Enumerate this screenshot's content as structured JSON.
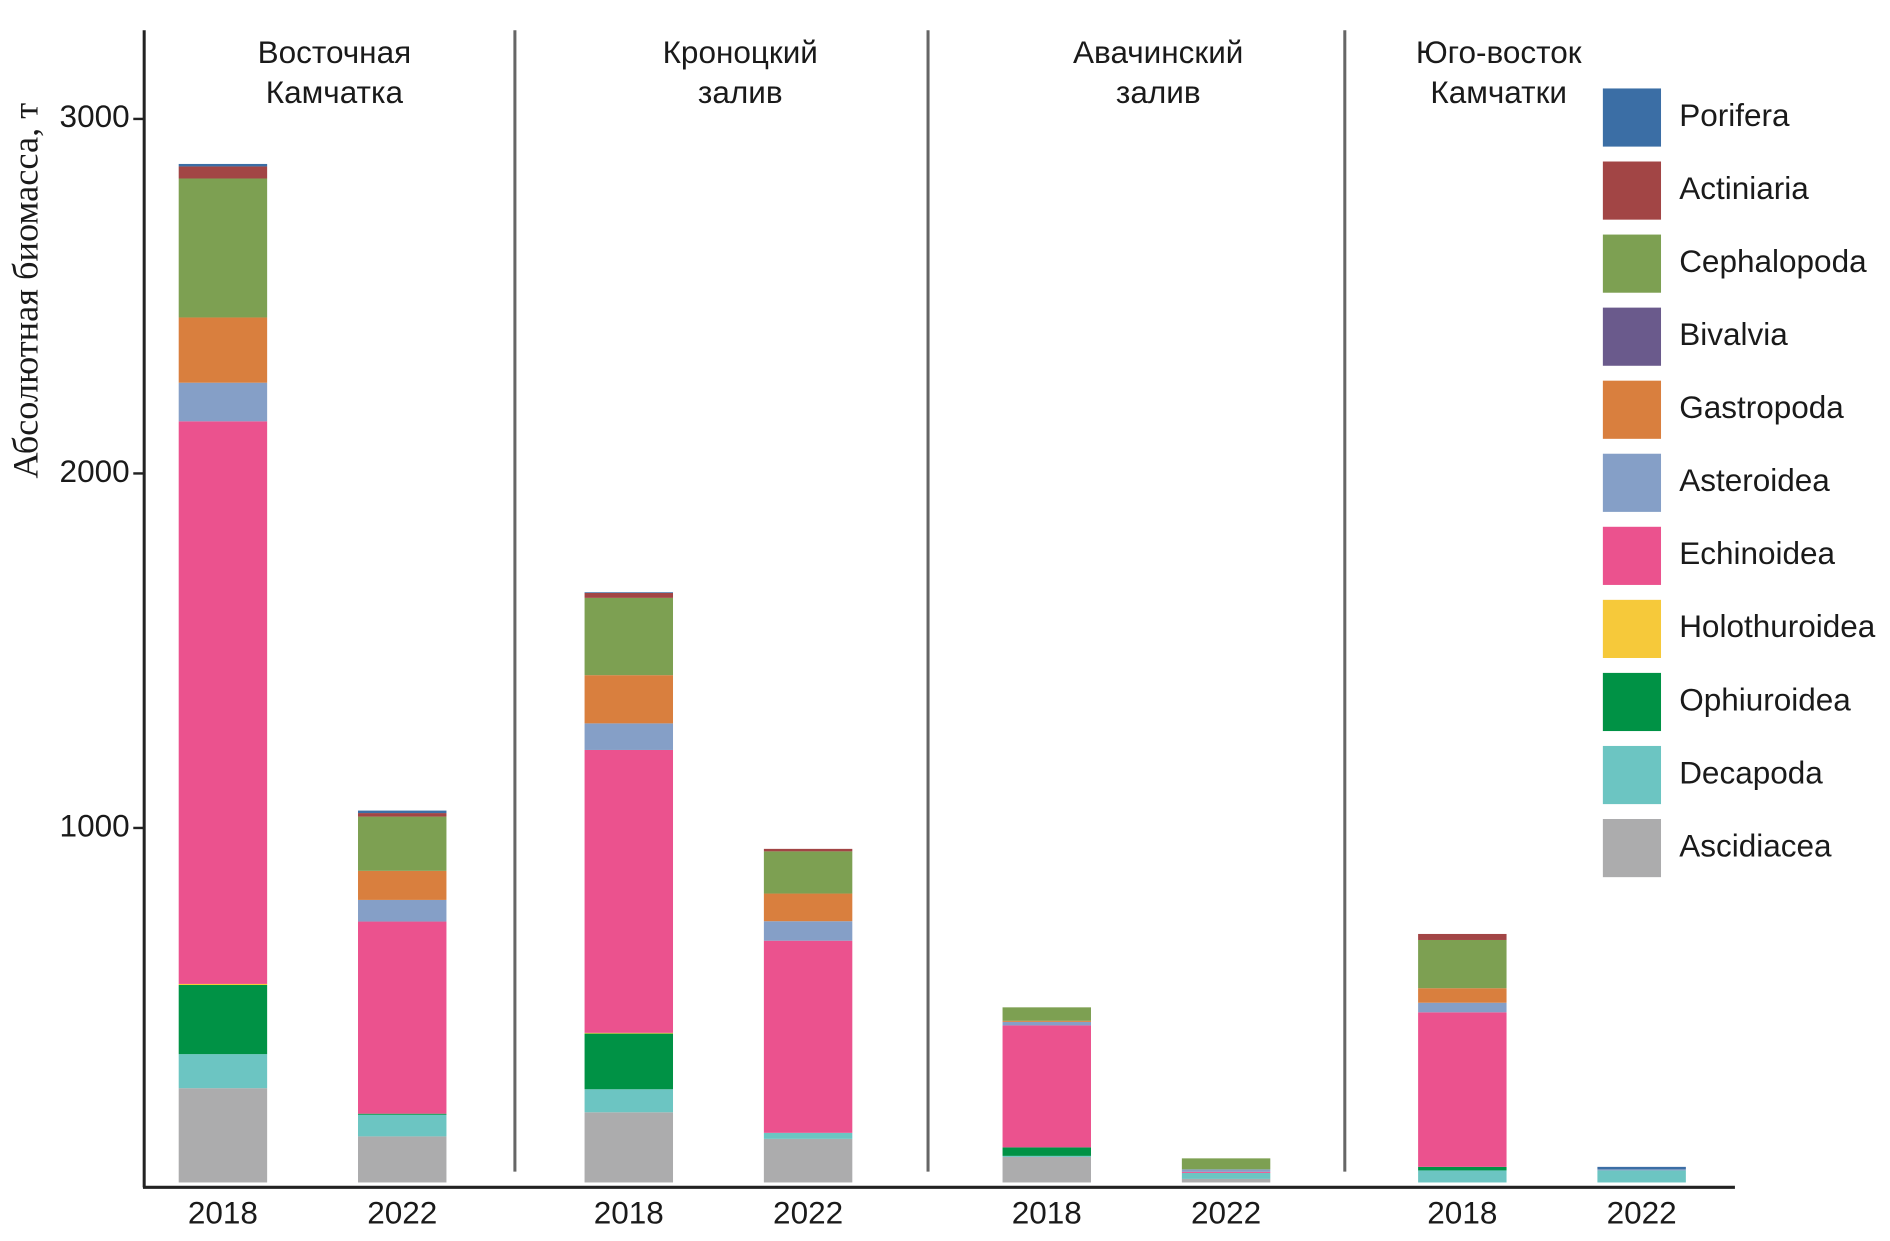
{
  "chart_data": {
    "type": "stacked_bar",
    "ylabel": "Абсолютная биомасса, т",
    "groups": [
      [
        "Восточная",
        "Камчатка"
      ],
      [
        "Кроноцкий",
        "залив"
      ],
      [
        "Авачинский",
        "залив"
      ],
      [
        "Юго-восток",
        "Камчатки"
      ]
    ],
    "categories": [
      "2018",
      "2022",
      "2018",
      "2022",
      "2018",
      "2022",
      "2018",
      "2022"
    ],
    "ylim": [
      0,
      3250
    ],
    "yticks": [
      1000,
      2000,
      3000
    ],
    "series": [
      {
        "name": "Ascidiacea",
        "color": "#acacad",
        "values": [
          266,
          130,
          198,
          123,
          72,
          10,
          0,
          0
        ]
      },
      {
        "name": "Decapoda",
        "color": "#6cc5c2",
        "values": [
          96,
          61,
          65,
          17,
          3,
          17,
          34,
          34
        ]
      },
      {
        "name": "Ophiuroidea",
        "color": "#009245",
        "values": [
          195,
          3,
          157,
          0,
          24,
          0,
          10,
          0
        ]
      },
      {
        "name": "Holothuroidea",
        "color": "#f6c93a",
        "values": [
          3,
          0,
          2,
          0,
          0,
          0,
          0,
          0
        ]
      },
      {
        "name": "Echinoidea",
        "color": "#eb528e",
        "values": [
          1587,
          542,
          798,
          542,
          344,
          3,
          436,
          0
        ]
      },
      {
        "name": "Asteroidea",
        "color": "#859fc7",
        "values": [
          109,
          61,
          75,
          55,
          10,
          7,
          27,
          3
        ]
      },
      {
        "name": "Gastropoda",
        "color": "#d97f3e",
        "values": [
          184,
          82,
          136,
          78,
          3,
          0,
          41,
          0
        ]
      },
      {
        "name": "Bivalvia",
        "color": "#6a5a8c",
        "values": [
          0,
          0,
          0,
          0,
          0,
          0,
          0,
          0
        ]
      },
      {
        "name": "Cephalopoda",
        "color": "#7da052",
        "values": [
          392,
          153,
          218,
          119,
          38,
          31,
          136,
          0
        ]
      },
      {
        "name": "Actiniaria",
        "color": "#a24545",
        "values": [
          34,
          10,
          14,
          7,
          0,
          0,
          17,
          0
        ]
      },
      {
        "name": "Porifera",
        "color": "#3b6ea5",
        "values": [
          7,
          7,
          2,
          0,
          0,
          0,
          0,
          7
        ]
      }
    ]
  }
}
